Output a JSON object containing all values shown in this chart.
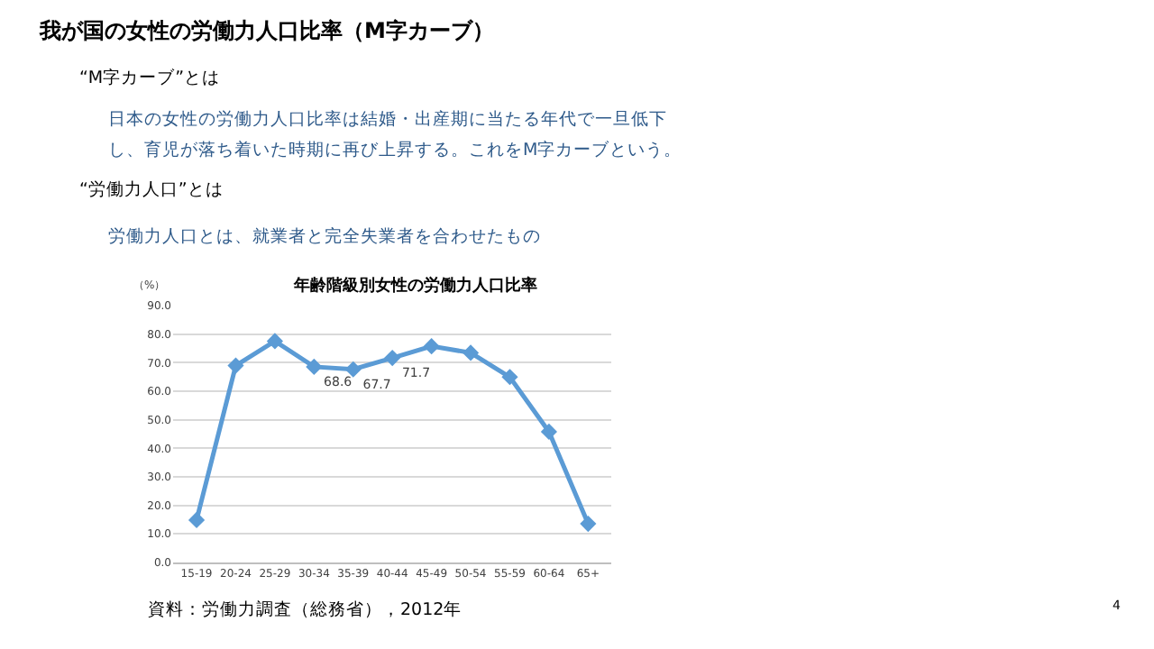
{
  "chart_data": {
    "type": "line",
    "title": "年齢階級別女性の労働力人口比率",
    "ylabel": "（%）",
    "annotations": [
      "我が国の女性の労働力人口比率（M字カーブ）",
      "“M字カーブ”とは",
      "日本の女性の労働力人口比率は結婚・出産期に当たる年代で一旦低下",
      "し、育児が落ち着いた時期に再び上昇する。これをM字カーブという。",
      "“労働力人口”とは",
      "労働力人口とは、就業者と完全失業者を合わせたもの",
      "資料：労働力調査（総務省），2012年",
      "4"
    ],
    "categories": [
      "15-19",
      "20-24",
      "25-29",
      "30-34",
      "35-39",
      "40-44",
      "45-49",
      "50-54",
      "55-59",
      "60-64",
      "65+"
    ],
    "series": [
      {
        "color": "#5b9bd5",
        "values": [
          14.8,
          69.0,
          77.6,
          68.6,
          67.7,
          71.7,
          75.8,
          73.5,
          65.0,
          45.8,
          13.5
        ],
        "value_labels": [
          null,
          null,
          null,
          "68.6",
          "67.7",
          "71.7",
          null,
          null,
          null,
          null,
          null
        ]
      }
    ],
    "ylim": [
      0,
      90
    ],
    "yticks": [
      {
        "value": 0,
        "label": "0.0"
      },
      {
        "value": 10,
        "label": "10.0"
      },
      {
        "value": 20,
        "label": "20.0"
      },
      {
        "value": 30,
        "label": "30.0"
      },
      {
        "value": 40,
        "label": "40.0"
      },
      {
        "value": 50,
        "label": "50.0"
      },
      {
        "value": 60,
        "label": "60.0"
      },
      {
        "value": 70,
        "label": "70.0"
      },
      {
        "value": 80,
        "label": "80.0"
      },
      {
        "value": 90,
        "label": "90.0"
      }
    ],
    "grid": "y",
    "marker": "diamond",
    "line_style": "solid"
  }
}
